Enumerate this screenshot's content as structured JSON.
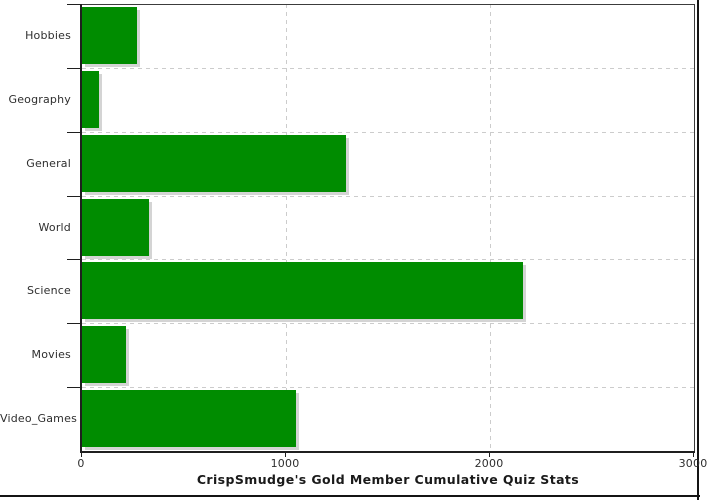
{
  "window": {
    "right_border_color": "#141414",
    "bottom_border_color": "#141414"
  },
  "chart_data": {
    "type": "bar",
    "orientation": "horizontal",
    "title": "CrispSmudge's Gold Member Cumulative Quiz Stats",
    "categories": [
      "Hobbies",
      "Geography",
      "General",
      "World",
      "Science",
      "Movies",
      "Video_Games"
    ],
    "values": [
      270,
      85,
      1295,
      330,
      2160,
      215,
      1050
    ],
    "xlabel": "",
    "ylabel": "",
    "xlim": [
      0,
      3000
    ],
    "x_ticks": [
      0,
      1000,
      2000,
      3000
    ],
    "x_tick_labels": [
      "0",
      "1000",
      "2000",
      "3000"
    ],
    "grid": "dashed",
    "gridline_color": "#cccccc",
    "bar_color": "#008c00",
    "shadow_color": "#d4d4d4",
    "axis_color": "#1f1f1f",
    "frame_color": "#3c3c3c",
    "legend": "none"
  }
}
